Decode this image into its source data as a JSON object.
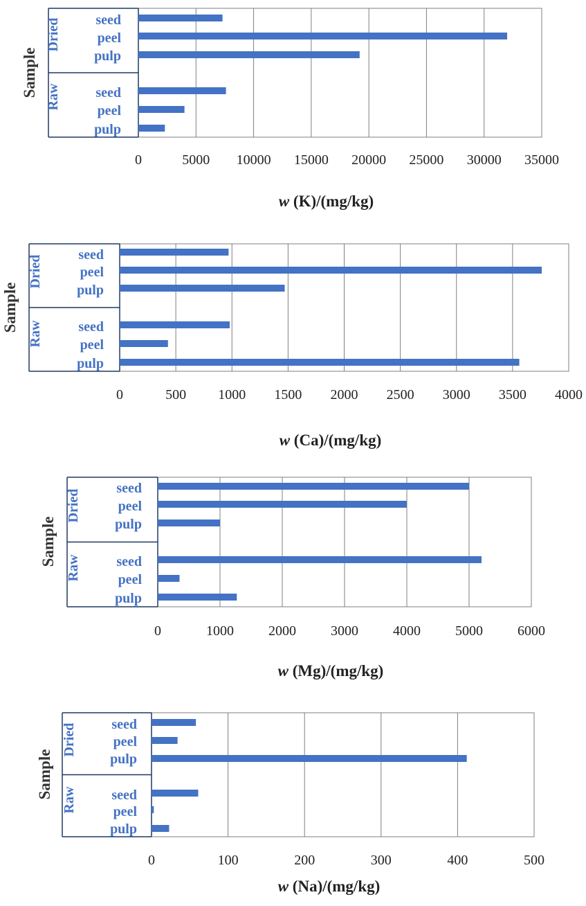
{
  "colors": {
    "bar": "#4472C4",
    "label": "#4472C4",
    "grid": "#7f7f7f",
    "frame": "#7f7f7f",
    "axis_box": "#1f3864"
  },
  "chart_data": [
    {
      "type": "bar",
      "orientation": "horizontal",
      "y_title": "Sample",
      "x_title_italic": "w",
      "x_title_rest": " (K)/(mg/kg)",
      "groups": [
        {
          "name": "Dried",
          "items": [
            {
              "label": "seed",
              "value": 7300
            },
            {
              "label": "peel",
              "value": 32000
            },
            {
              "label": "pulp",
              "value": 19200
            }
          ]
        },
        {
          "name": "Raw",
          "items": [
            {
              "label": "seed",
              "value": 7600
            },
            {
              "label": "peel",
              "value": 4000
            },
            {
              "label": "pulp",
              "value": 2300
            }
          ]
        }
      ],
      "xlim": [
        0,
        35000
      ],
      "xticks": [
        "0",
        "5000",
        "10000",
        "15000",
        "20000",
        "25000",
        "30000",
        "35000"
      ],
      "grid": true
    },
    {
      "type": "bar",
      "orientation": "horizontal",
      "y_title": "Sample",
      "x_title_italic": "w",
      "x_title_rest": " (Ca)/(mg/kg)",
      "groups": [
        {
          "name": "Dried",
          "items": [
            {
              "label": "seed",
              "value": 970
            },
            {
              "label": "peel",
              "value": 3760
            },
            {
              "label": "pulp",
              "value": 1470
            }
          ]
        },
        {
          "name": "Raw",
          "items": [
            {
              "label": "seed",
              "value": 980
            },
            {
              "label": "peel",
              "value": 430
            },
            {
              "label": "pulp",
              "value": 3560
            }
          ]
        }
      ],
      "xlim": [
        0,
        4000
      ],
      "xticks": [
        "0",
        "500",
        "1000",
        "1500",
        "2000",
        "2500",
        "3000",
        "3500",
        "4000"
      ],
      "grid": true
    },
    {
      "type": "bar",
      "orientation": "horizontal",
      "y_title": "Sample",
      "x_title_italic": "w",
      "x_title_rest": " (Mg)/(mg/kg)",
      "groups": [
        {
          "name": "Dried",
          "items": [
            {
              "label": "seed",
              "value": 5000
            },
            {
              "label": "peel",
              "value": 4000
            },
            {
              "label": "pulp",
              "value": 1000
            }
          ]
        },
        {
          "name": "Raw",
          "items": [
            {
              "label": "seed",
              "value": 5200
            },
            {
              "label": "peel",
              "value": 350
            },
            {
              "label": "pulp",
              "value": 1270
            }
          ]
        }
      ],
      "xlim": [
        0,
        6000
      ],
      "xticks": [
        "0",
        "1000",
        "2000",
        "3000",
        "4000",
        "5000",
        "6000"
      ],
      "grid": true
    },
    {
      "type": "bar",
      "orientation": "horizontal",
      "y_title": "Sample",
      "x_title_italic": "w",
      "x_title_rest": " (Na)/(mg/kg)",
      "groups": [
        {
          "name": "Dried",
          "items": [
            {
              "label": "seed",
              "value": 58
            },
            {
              "label": "peel",
              "value": 34
            },
            {
              "label": "pulp",
              "value": 412
            }
          ]
        },
        {
          "name": "Raw",
          "items": [
            {
              "label": "seed",
              "value": 61
            },
            {
              "label": "peel",
              "value": 3
            },
            {
              "label": "pulp",
              "value": 23
            }
          ]
        }
      ],
      "xlim": [
        0,
        500
      ],
      "xticks": [
        "0",
        "100",
        "200",
        "300",
        "400",
        "500"
      ],
      "grid": true
    }
  ]
}
